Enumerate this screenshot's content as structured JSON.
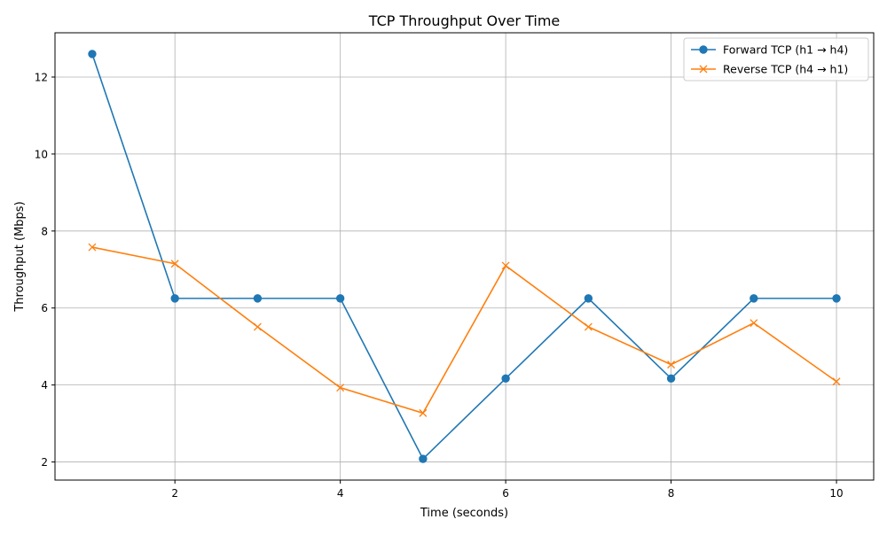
{
  "chart_data": {
    "type": "line",
    "title": "TCP Throughput Over Time",
    "xlabel": "Time (seconds)",
    "ylabel": "Throughput (Mbps)",
    "xlim": [
      0.55,
      10.45
    ],
    "ylim": [
      1.53,
      13.15
    ],
    "xticks": [
      2,
      4,
      6,
      8,
      10
    ],
    "yticks": [
      2,
      4,
      6,
      8,
      10,
      12
    ],
    "grid": true,
    "legend_position": "top-right",
    "x": [
      1,
      2,
      3,
      4,
      5,
      6,
      7,
      8,
      9,
      10
    ],
    "series": [
      {
        "name": "Forward TCP (h1 → h4)",
        "marker": "circle",
        "color": "#1f77b4",
        "values": [
          12.6,
          6.25,
          6.25,
          6.25,
          2.08,
          4.17,
          6.25,
          4.17,
          6.25,
          6.25
        ]
      },
      {
        "name": "Reverse TCP (h4 → h1)",
        "marker": "x",
        "color": "#ff7f0e",
        "values": [
          7.58,
          7.15,
          5.51,
          3.93,
          3.27,
          7.1,
          5.51,
          4.53,
          5.61,
          4.09
        ]
      }
    ]
  }
}
